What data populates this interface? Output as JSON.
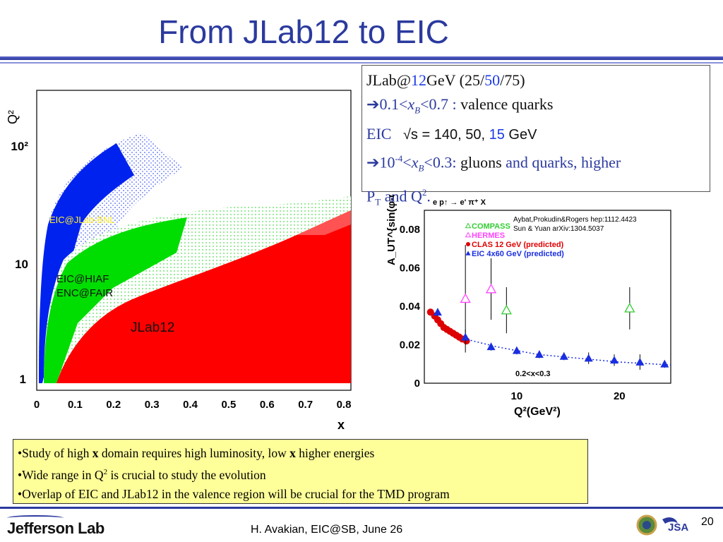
{
  "slide": {
    "title": "From JLab12 to EIC",
    "footer": "H. Avakian, EIC@SB,  June 26",
    "page_number": "20",
    "logo_text": "Jefferson Lab",
    "jsa_logo": "JSA"
  },
  "infobox": {
    "l1_a": "JLab@",
    "l1_b": "12",
    "l1_c": "GeV (25/",
    "l1_d": "50",
    "l1_e": "/75)",
    "l2_a": "0.1<",
    "l2_x": "x",
    "l2_sub": "B",
    "l2_b": "<0.7 : ",
    "l2_c": "valence quarks",
    "l3_a": "EIC",
    "l3_b": "√s = 140, 50, ",
    "l3_c": "15",
    "l3_d": " GeV",
    "l4_a": "10",
    "l4_sup": "-4",
    "l4_b": "<",
    "l4_x": "x",
    "l4_sub": "B",
    "l4_c": "<0.3: ",
    "l4_d": "gluons ",
    "l4_e": "and quarks, higher",
    "l5_a": "P",
    "l5_sub": "T",
    "l5_b": " and Q",
    "l5_sup": "2",
    "l5_c": "."
  },
  "bullets": [
    {
      "parts": [
        "•Study of high ",
        "x",
        " domain  requires high luminosity, low ",
        "x",
        " higher energies"
      ]
    },
    {
      "parts": [
        "•Wide range in Q",
        "2",
        " is crucial to study the evolution"
      ]
    },
    {
      "parts": [
        "•Overlap of EIC and JLab12 in the valence region will be crucial for the TMD program"
      ]
    }
  ],
  "colors": {
    "title": "#2b3a9e",
    "jlab12": "#ff0000",
    "eic_hiaf": "#00dd00",
    "eic_jlab_bnl": "#0022ee",
    "compass": "#33cc33",
    "hermes": "#ff44ff",
    "clas12": "#dd0000",
    "eic4x60": "#1a2ee0"
  },
  "chart_data": [
    {
      "type": "scatter",
      "description_labels": [
        "EIC@JLab-BNL",
        "EIC@HIAF",
        "ENC@FAIR",
        "JLab12"
      ],
      "xlabel": "x",
      "ylabel": "Q²",
      "x_ticks": [
        "0",
        "0.1",
        "0.2",
        "0.3",
        "0.4",
        "0.5",
        "0.6",
        "0.7",
        "0.8"
      ],
      "y_ticks": [
        "1",
        "10",
        "10²"
      ],
      "xlim": [
        0,
        0.8
      ],
      "ylim_log": [
        1,
        200
      ],
      "regions": [
        {
          "name": "EIC@JLab-BNL",
          "color": "#0022ee"
        },
        {
          "name": "EIC@HIAF / ENC@FAIR",
          "color": "#00dd00"
        },
        {
          "name": "JLab12",
          "color": "#ff0000"
        }
      ]
    },
    {
      "type": "scatter",
      "header": "e p↑ → e' π⁺ X",
      "ylabel": "A_UT^{sin(φ-φs)}",
      "xlabel": "Q²(GeV²)",
      "y_ticks": [
        "0",
        "0.02",
        "0.04",
        "0.06",
        "0.08"
      ],
      "x_ticks": [
        "10",
        "20"
      ],
      "ylim": [
        0,
        0.09
      ],
      "xlim": [
        1,
        25
      ],
      "annotation": "0.2<x<0.3",
      "references": [
        "Aybat,Prokudin&Rogers hep:1112.4423",
        "Sun & Yuan arXiv:1304.5037"
      ],
      "series": [
        {
          "name": "COMPASS",
          "color": "#33cc33",
          "marker": "open-triangle",
          "x": [
            9.0,
            21.0
          ],
          "y": [
            0.038,
            0.039
          ],
          "err": [
            0.012,
            0.011
          ]
        },
        {
          "name": "HERMES",
          "color": "#ff44ff",
          "marker": "open-triangle",
          "x": [
            5.0,
            7.5
          ],
          "y": [
            0.044,
            0.049
          ],
          "err": [
            0.028,
            0.016
          ]
        },
        {
          "name": "CLAS 12 GeV (predicted)",
          "color": "#dd0000",
          "marker": "circle",
          "x": [
            1.6,
            2.0,
            2.3,
            2.6,
            2.9,
            3.2,
            3.5,
            3.8,
            4.1,
            4.4,
            4.7,
            5.1
          ],
          "y": [
            0.037,
            0.035,
            0.033,
            0.031,
            0.029,
            0.028,
            0.027,
            0.026,
            0.025,
            0.024,
            0.023,
            0.022
          ]
        },
        {
          "name": "EIC 4x60 GeV (predicted)",
          "color": "#1a2ee0",
          "marker": "filled-triangle",
          "x": [
            2.3,
            5.0,
            7.5,
            10.0,
            12.2,
            14.6,
            17.0,
            19.5,
            22.0,
            24.4
          ],
          "y": [
            0.037,
            0.024,
            0.019,
            0.017,
            0.015,
            0.014,
            0.013,
            0.012,
            0.011,
            0.01
          ],
          "err": [
            0.002,
            0.004,
            0.002,
            0.002,
            0.002,
            0.002,
            0.003,
            0.003,
            0.004,
            0.002
          ]
        }
      ],
      "fit_curve": {
        "color": "#1a2ee0",
        "style": "dotted",
        "x": [
          1.5,
          3,
          5,
          8,
          12,
          16,
          20,
          25
        ],
        "y": [
          0.036,
          0.029,
          0.023,
          0.019,
          0.015,
          0.013,
          0.011,
          0.0095
        ]
      }
    }
  ]
}
